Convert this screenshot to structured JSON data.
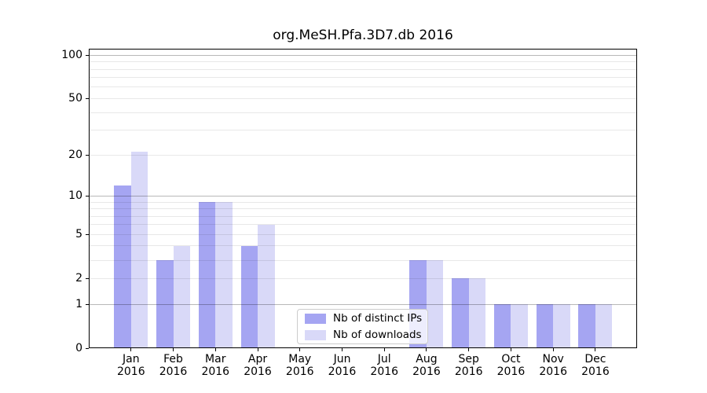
{
  "title": "org.MeSH.Pfa.3D7.db 2016",
  "chart_data": {
    "type": "bar",
    "title": "org.MeSH.Pfa.3D7.db 2016",
    "categories": [
      "Jan",
      "Feb",
      "Mar",
      "Apr",
      "May",
      "Jun",
      "Jul",
      "Aug",
      "Sep",
      "Oct",
      "Nov",
      "Dec"
    ],
    "year_label": "2016",
    "series": [
      {
        "name": "Nb of distinct IPs",
        "color": "#a5a5f2",
        "values": [
          12,
          3,
          9,
          4,
          0,
          0,
          0,
          3,
          2,
          1,
          1,
          1
        ]
      },
      {
        "name": "Nb of downloads",
        "color": "#d9d9f8",
        "values": [
          21,
          4,
          9,
          6,
          0,
          0,
          0,
          3,
          2,
          1,
          1,
          1
        ]
      }
    ],
    "y_axis": {
      "scale": "log10(1+y)",
      "ticks": [
        0,
        1,
        2,
        5,
        10,
        20,
        50,
        100
      ],
      "major_gridlines": [
        1,
        10,
        100
      ],
      "minor_gridlines": [
        2,
        3,
        4,
        5,
        6,
        7,
        8,
        9,
        20,
        30,
        40,
        50,
        60,
        70,
        80,
        90
      ],
      "ylim": [
        0,
        112
      ]
    },
    "xlabel": "",
    "ylabel": "",
    "grid": true,
    "legend": {
      "entries": [
        "Nb of distinct IPs",
        "Nb of downloads"
      ],
      "position": "lower center"
    }
  },
  "colors": {
    "distinct_ips": "#a5a5f2",
    "downloads": "#d9d9f8",
    "grid_major": "rgba(0,0,0,0.28)",
    "grid_minor": "rgba(0,0,0,0.09)",
    "axis": "#000000",
    "text": "#000000",
    "legend_border": "#cccccc",
    "legend_bg": "rgba(255,255,255,0.8)"
  }
}
